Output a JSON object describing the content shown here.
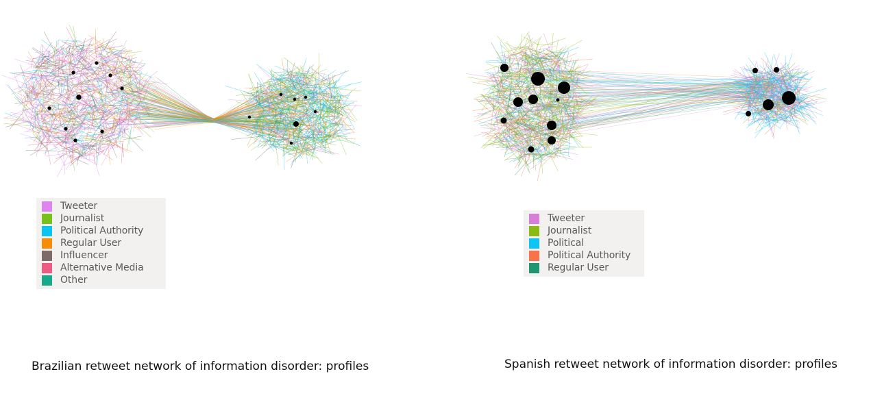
{
  "panels": {
    "brazil": {
      "caption": "Brazilian retweet network of information disorder: profiles",
      "legend": [
        {
          "label": "Tweeter",
          "color": "#de84f0"
        },
        {
          "label": "Journalist",
          "color": "#78c11a"
        },
        {
          "label": "Political Authority",
          "color": "#0bc4ef"
        },
        {
          "label": "Regular User",
          "color": "#f58d08"
        },
        {
          "label": "Influencer",
          "color": "#7c6968"
        },
        {
          "label": "Alternative Media",
          "color": "#ee5a84"
        },
        {
          "label": "Other",
          "color": "#17a98c"
        }
      ]
    },
    "spain": {
      "caption": "Spanish retweet network of information disorder: profiles",
      "legend": [
        {
          "label": "Tweeter",
          "color": "#d67fd9"
        },
        {
          "label": "Journalist",
          "color": "#8cba14"
        },
        {
          "label": "Political",
          "color": "#0ec4f5"
        },
        {
          "label": "Political Authority",
          "color": "#f8734a"
        },
        {
          "label": "Regular User",
          "color": "#1f9671"
        }
      ]
    }
  }
}
